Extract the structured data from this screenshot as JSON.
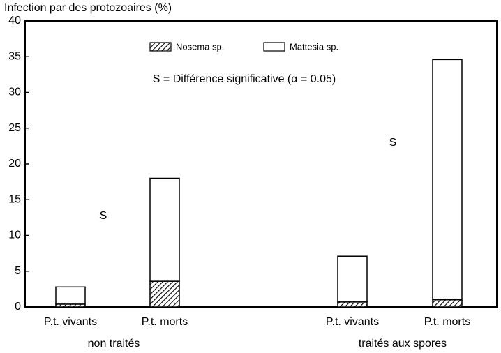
{
  "chart_data": {
    "type": "stacked_bar",
    "y_label": "Infection par des protozoaires (%)",
    "categories": [
      "P.t. vivants",
      "P.t. morts",
      "P.t. vivants",
      "P.t. morts"
    ],
    "groups": [
      "non traités",
      "traités aux spores"
    ],
    "series": [
      {
        "name": "Nosema sp.",
        "color": "#000000",
        "values": [
          0.4,
          3.6,
          0.7,
          1.0
        ]
      },
      {
        "name": "Mattesia sp.",
        "color": "#ffffff",
        "values": [
          2.4,
          14.4,
          6.4,
          33.6
        ]
      }
    ],
    "annotations": [
      "S = Différence significative (α = 0.05)",
      "S",
      "S"
    ],
    "ylim": [
      0,
      40
    ],
    "yticks": [
      0,
      5,
      10,
      15,
      20,
      25,
      30,
      35,
      40
    ],
    "grid": false
  }
}
